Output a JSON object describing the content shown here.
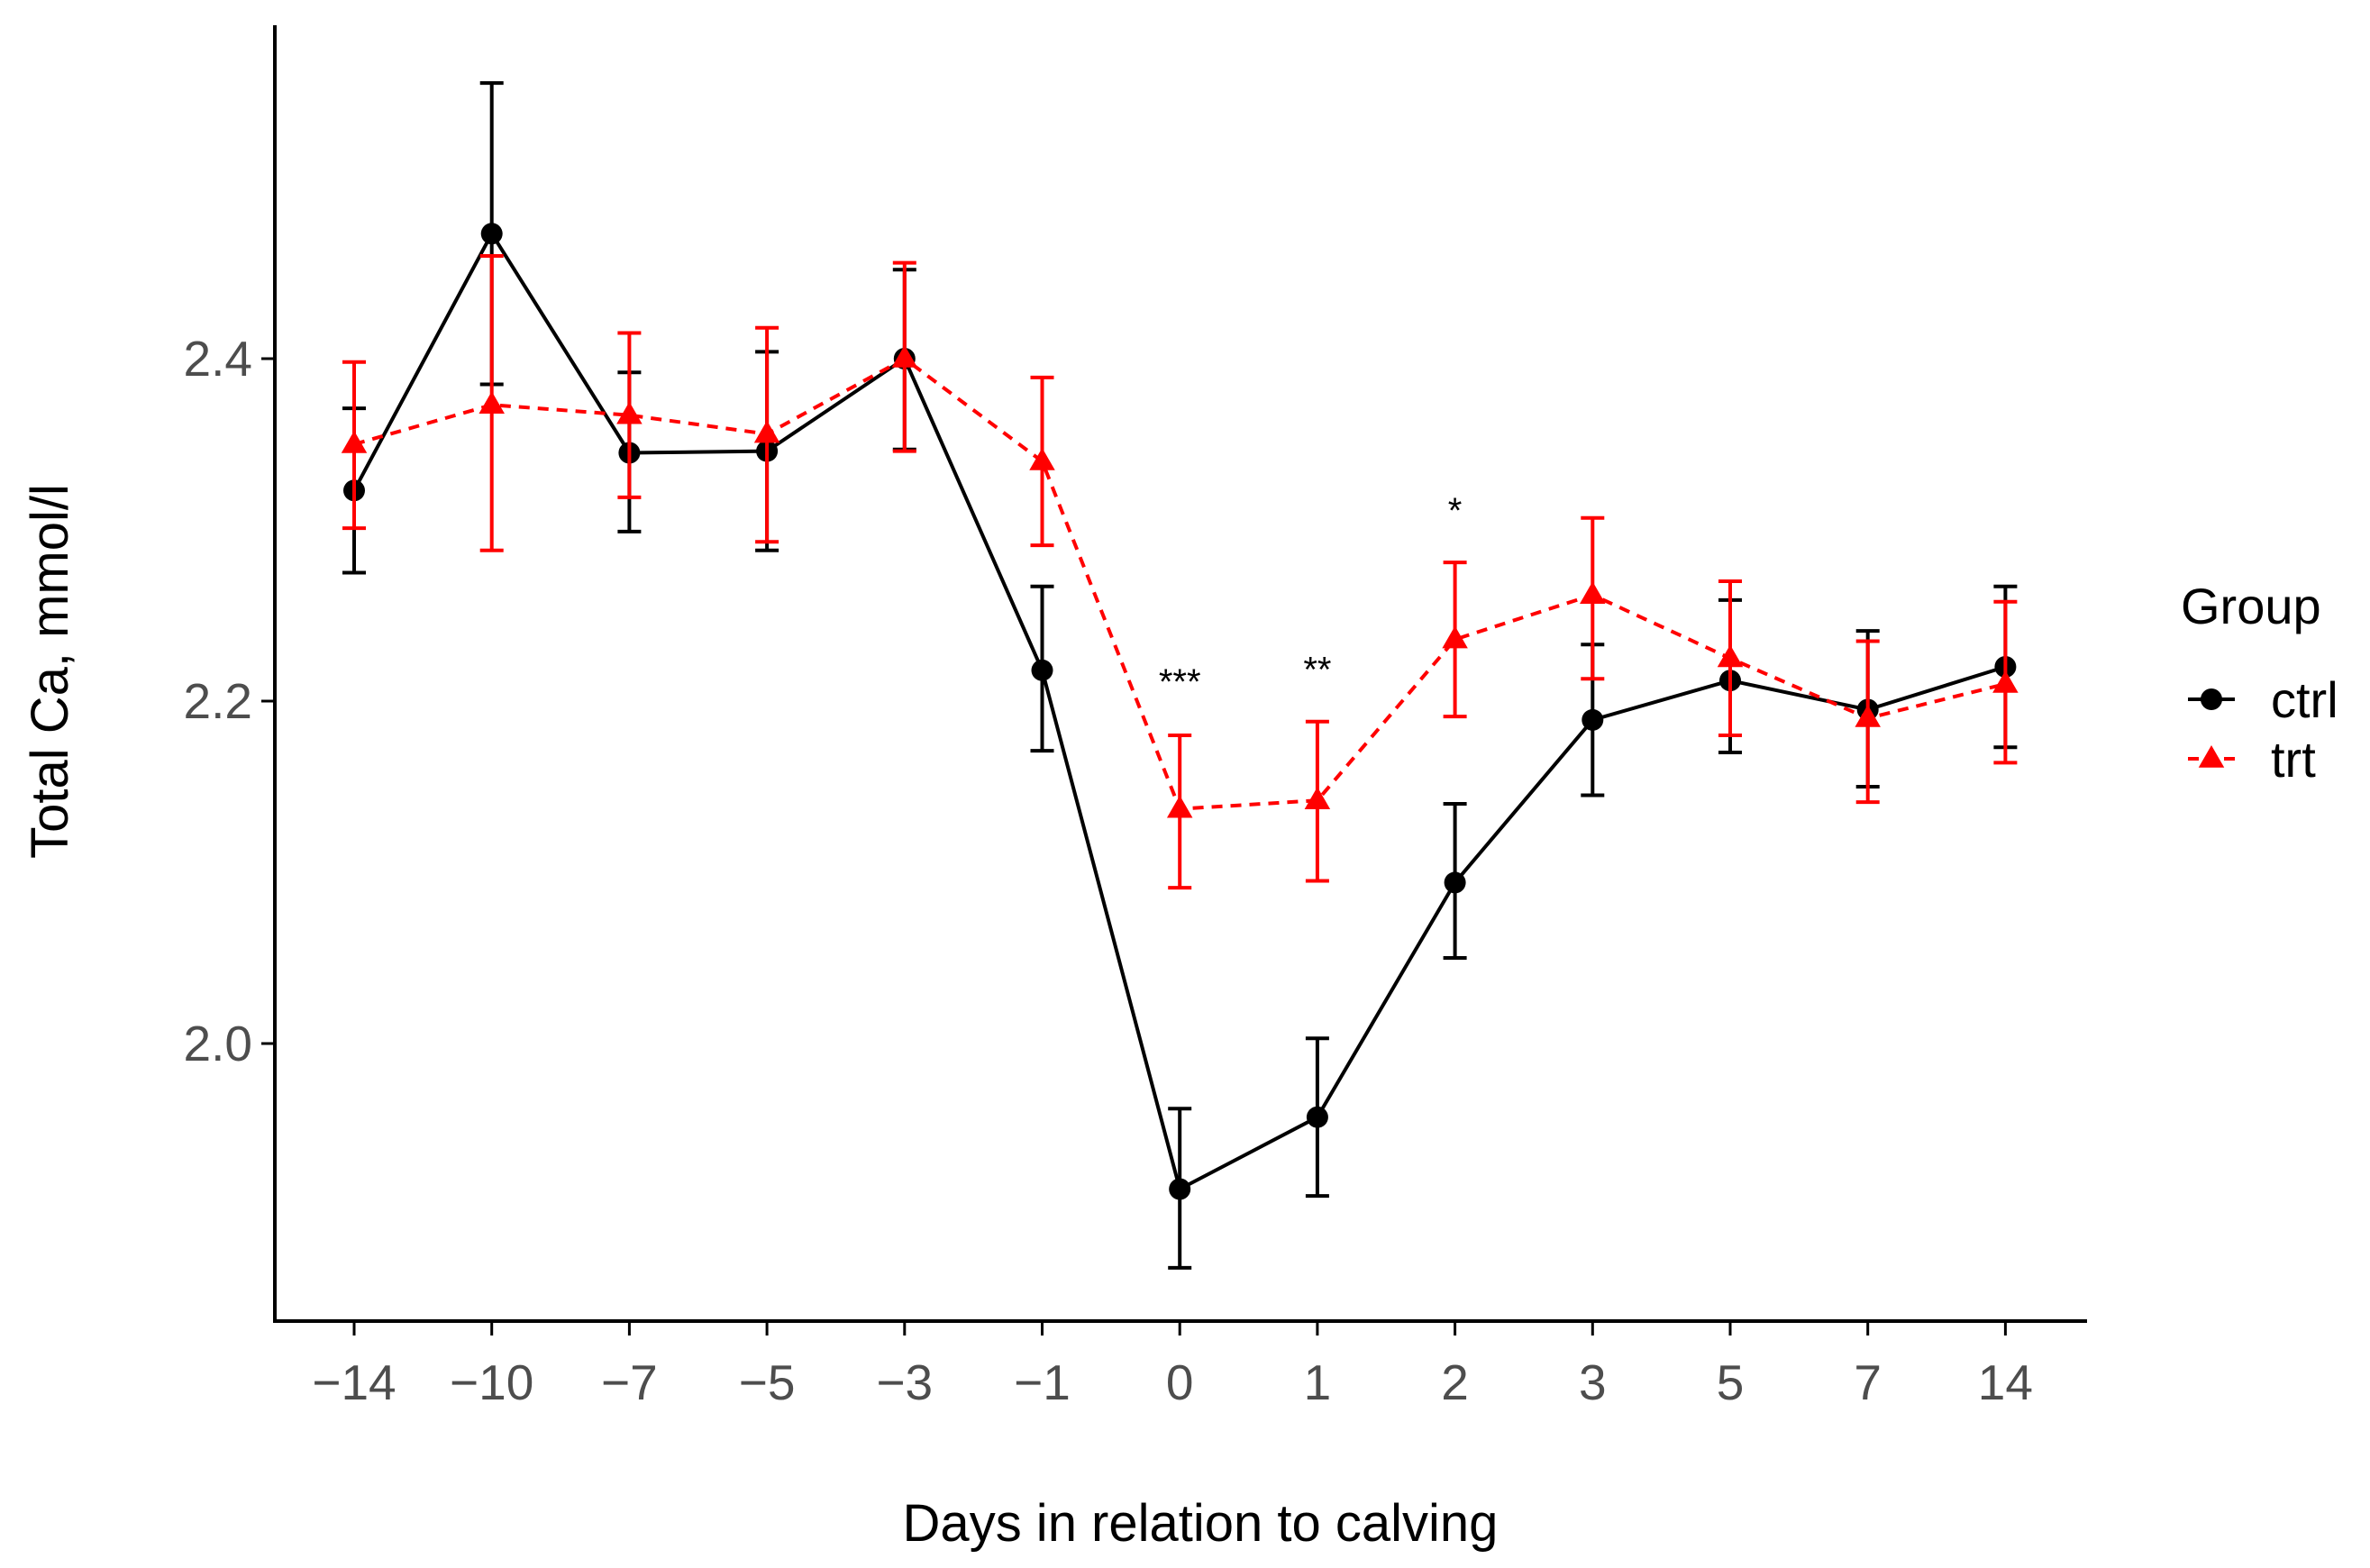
{
  "chart_data": {
    "type": "line",
    "title": "",
    "xlabel": "Days in relation to calving",
    "ylabel": "Total Ca, mmol/l",
    "categories": [
      "−14",
      "−10",
      "−7",
      "−5",
      "−3",
      "−1",
      "0",
      "1",
      "2",
      "3",
      "5",
      "7",
      "14"
    ],
    "ylim": [
      1.84,
      2.58
    ],
    "yticks": [
      "2.0",
      "2.2",
      "2.4"
    ],
    "ytick_values": [
      2.0,
      2.2,
      2.4
    ],
    "legend_title": "Group",
    "legend_position": "right",
    "series": [
      {
        "name": "ctrl",
        "color": "#000000",
        "marker": "circle",
        "line": "solid",
        "values": [
          2.323,
          2.473,
          2.345,
          2.346,
          2.4,
          2.218,
          1.915,
          1.957,
          2.094,
          2.189,
          2.212,
          2.195,
          2.22
        ],
        "lower": [
          2.275,
          2.385,
          2.299,
          2.288,
          2.347,
          2.171,
          1.869,
          1.911,
          2.05,
          2.145,
          2.17,
          2.15,
          2.173
        ],
        "upper": [
          2.371,
          2.561,
          2.392,
          2.404,
          2.452,
          2.267,
          1.962,
          2.003,
          2.14,
          2.233,
          2.259,
          2.241,
          2.267
        ]
      },
      {
        "name": "trt",
        "color": "#ff0000",
        "marker": "triangle",
        "line": "dashed",
        "values": [
          2.35,
          2.373,
          2.367,
          2.356,
          2.4,
          2.34,
          2.137,
          2.142,
          2.236,
          2.262,
          2.225,
          2.19,
          2.21
        ],
        "lower": [
          2.301,
          2.288,
          2.319,
          2.293,
          2.346,
          2.291,
          2.091,
          2.095,
          2.191,
          2.213,
          2.18,
          2.141,
          2.164
        ],
        "upper": [
          2.398,
          2.46,
          2.415,
          2.418,
          2.456,
          2.389,
          2.18,
          2.188,
          2.281,
          2.307,
          2.27,
          2.235,
          2.258
        ]
      }
    ],
    "annotations": [
      {
        "category": "0",
        "text": "***",
        "y": 2.218
      },
      {
        "category": "1",
        "text": "**",
        "y": 2.225
      },
      {
        "category": "2",
        "text": "*",
        "y": 2.318
      }
    ]
  }
}
